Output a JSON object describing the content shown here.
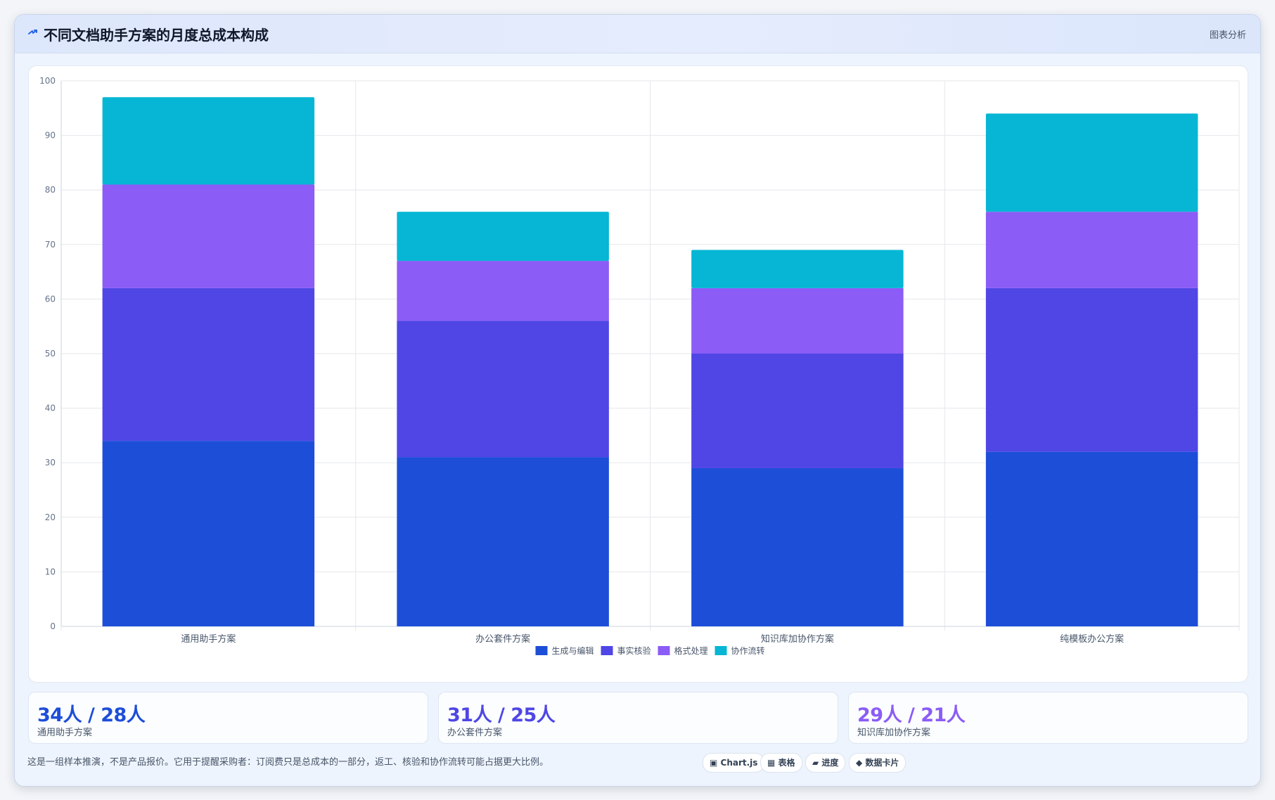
{
  "header": {
    "title": "不同文档助手方案的月度总成本构成",
    "tag": "图表分析",
    "icon": "bolt-icon"
  },
  "chart_data": {
    "type": "bar",
    "stacked": true,
    "categories": [
      "通用助手方案",
      "办公套件方案",
      "知识库加协作方案",
      "纯模板办公方案"
    ],
    "series": [
      {
        "name": "生成与编辑",
        "color": "#1d4ed8",
        "values": [
          34,
          31,
          29,
          32
        ]
      },
      {
        "name": "事实核验",
        "color": "#4f46e5",
        "values": [
          28,
          25,
          21,
          30
        ]
      },
      {
        "name": "格式处理",
        "color": "#8b5cf6",
        "values": [
          19,
          11,
          12,
          14
        ]
      },
      {
        "name": "协作流转",
        "color": "#06b6d4",
        "values": [
          16,
          9,
          7,
          18
        ]
      }
    ],
    "ylim": [
      0,
      100
    ],
    "yticks": [
      0,
      10,
      20,
      30,
      40,
      50,
      60,
      70,
      80,
      90,
      100
    ],
    "grid": true,
    "legend": "bottom"
  },
  "stats": [
    {
      "value": "34人 / 28人",
      "label": "通用助手方案",
      "color": "#1d4ed8"
    },
    {
      "value": "31人 / 25人",
      "label": "办公套件方案",
      "color": "#4f46e5"
    },
    {
      "value": "29人 / 21人",
      "label": "知识库加协作方案",
      "color": "#8b5cf6"
    }
  ],
  "footnote": "这是一组样本推演，不是产品报价。它用于提醒采购者：订阅费只是总成本的一部分，返工、核验和协作流转可能占据更大比例。",
  "chips": [
    {
      "label": "▣ Chart.js"
    },
    {
      "label": "▦ 表格"
    },
    {
      "label": "▰ 进度"
    },
    {
      "label": "◆ 数据卡片"
    }
  ]
}
